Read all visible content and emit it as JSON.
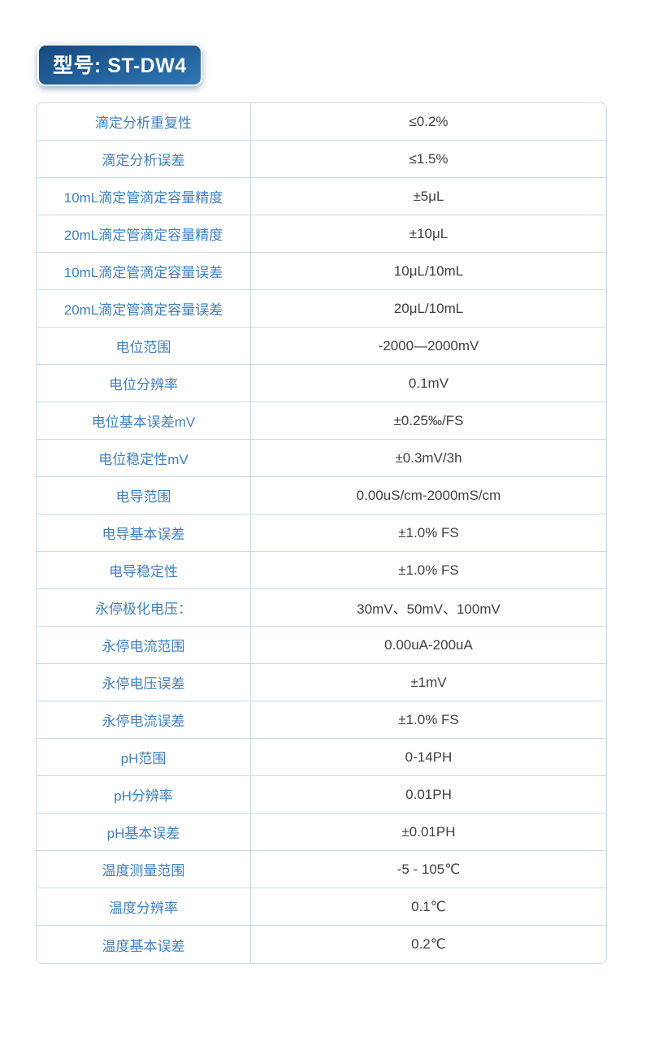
{
  "header": {
    "model_label": "型号: ST-DW4"
  },
  "theme": {
    "badge_gradient_top": "#16497e",
    "badge_gradient_bottom": "#2e77b5",
    "badge_text_color": "#ffffff",
    "table_border_color": "#c9dcec",
    "label_text_color": "#4080c1",
    "value_text_color": "#404040",
    "page_background": "#ffffff"
  },
  "table": {
    "rows": [
      {
        "label": "滴定分析重复性",
        "value": "≤0.2%"
      },
      {
        "label": "滴定分析误差",
        "value": "≤1.5%"
      },
      {
        "label": "10mL滴定管滴定容量精度",
        "value": "±5μL"
      },
      {
        "label": "20mL滴定管滴定容量精度",
        "value": "±10μL"
      },
      {
        "label": "10mL滴定管滴定容量误差",
        "value": "10μL/10mL"
      },
      {
        "label": "20mL滴定管滴定容量误差",
        "value": "20μL/10mL"
      },
      {
        "label": "电位范围",
        "value": "-2000—2000mV"
      },
      {
        "label": "电位分辨率",
        "value": "0.1mV"
      },
      {
        "label": "电位基本误差mV",
        "value": "±0.25‰/FS"
      },
      {
        "label": "电位稳定性mV",
        "value": "±0.3mV/3h"
      },
      {
        "label": "电导范围",
        "value": "0.00uS/cm-2000mS/cm"
      },
      {
        "label": "电导基本误差",
        "value": "±1.0% FS"
      },
      {
        "label": "电导稳定性",
        "value": "±1.0% FS"
      },
      {
        "label": "永停极化电压：",
        "value": "30mV、50mV、100mV"
      },
      {
        "label": "永停电流范围",
        "value": "0.00uA-200uA"
      },
      {
        "label": "永停电压误差",
        "value": "±1mV"
      },
      {
        "label": "永停电流误差",
        "value": "±1.0% FS"
      },
      {
        "label": "pH范围",
        "value": "0-14PH"
      },
      {
        "label": "pH分辨率",
        "value": "0.01PH"
      },
      {
        "label": "pH基本误差",
        "value": "±0.01PH"
      },
      {
        "label": "温度测量范围",
        "value": "-5 - 105℃"
      },
      {
        "label": "温度分辨率",
        "value": "0.1℃"
      },
      {
        "label": "温度基本误差",
        "value": "0.2℃"
      }
    ]
  }
}
